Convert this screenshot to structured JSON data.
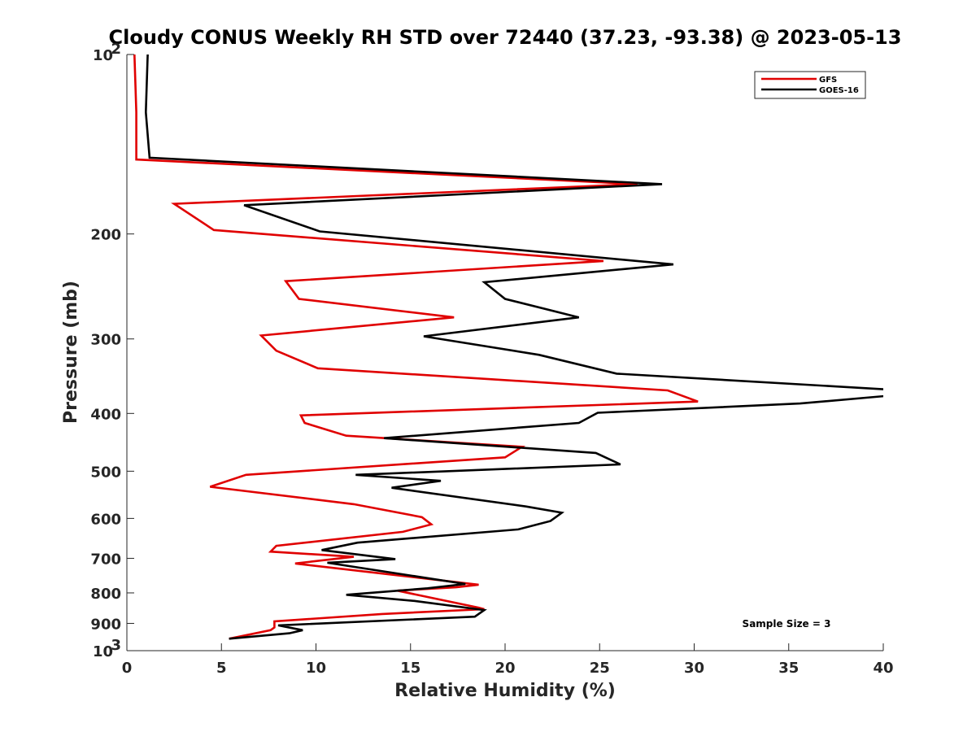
{
  "chart_data": {
    "type": "line",
    "title": "Cloudy CONUS Weekly RH STD over 72440 (37.23, -93.38) @ 2023-05-13",
    "xlabel": "Relative Humidity (%)",
    "ylabel": "Pressure (mb)",
    "xlim": [
      0,
      40
    ],
    "ylim": [
      1000,
      100
    ],
    "y_scale": "log",
    "y_reversed": true,
    "x_ticks": [
      0,
      5,
      10,
      15,
      20,
      25,
      30,
      35,
      40
    ],
    "y_ticks": [
      {
        "value": 100,
        "label": "10",
        "sup": "2"
      },
      {
        "value": 200,
        "label": "200",
        "sup": ""
      },
      {
        "value": 300,
        "label": "300",
        "sup": ""
      },
      {
        "value": 400,
        "label": "400",
        "sup": ""
      },
      {
        "value": 500,
        "label": "500",
        "sup": ""
      },
      {
        "value": 600,
        "label": "600",
        "sup": ""
      },
      {
        "value": 700,
        "label": "700",
        "sup": ""
      },
      {
        "value": 800,
        "label": "800",
        "sup": ""
      },
      {
        "value": 900,
        "label": "900",
        "sup": ""
      },
      {
        "value": 1000,
        "label": "10",
        "sup": "3"
      }
    ],
    "grid": false,
    "legend_position": "top-right",
    "annotation": "Sample Size = 3",
    "series": [
      {
        "name": "GFS",
        "color": "#e00000",
        "points": [
          [
            0.4,
            100
          ],
          [
            0.5,
            125
          ],
          [
            0.5,
            150
          ],
          [
            27.0,
            165
          ],
          [
            2.5,
            178
          ],
          [
            4.6,
            197
          ],
          [
            25.2,
            222
          ],
          [
            8.4,
            240
          ],
          [
            9.1,
            257
          ],
          [
            17.3,
            276
          ],
          [
            7.1,
            296
          ],
          [
            7.9,
            314
          ],
          [
            10.1,
            336
          ],
          [
            28.6,
            366
          ],
          [
            30.2,
            382
          ],
          [
            9.2,
            403
          ],
          [
            9.4,
            415
          ],
          [
            11.6,
            436
          ],
          [
            20.9,
            455
          ],
          [
            20.0,
            474
          ],
          [
            6.3,
            507
          ],
          [
            4.4,
            531
          ],
          [
            12.0,
            568
          ],
          [
            15.6,
            597
          ],
          [
            16.1,
            614
          ],
          [
            14.6,
            632
          ],
          [
            7.9,
            667
          ],
          [
            7.6,
            682
          ],
          [
            12.0,
            696
          ],
          [
            8.9,
            714
          ],
          [
            18.6,
            775
          ],
          [
            17.4,
            783
          ],
          [
            14.3,
            793
          ],
          [
            18.6,
            847
          ],
          [
            18.9,
            852
          ],
          [
            13.5,
            868
          ],
          [
            7.8,
            893
          ],
          [
            7.8,
            914
          ],
          [
            7.6,
            924
          ],
          [
            5.4,
            955
          ]
        ]
      },
      {
        "name": "GOES-16",
        "color": "#000000",
        "points": [
          [
            1.1,
            100
          ],
          [
            1.0,
            125
          ],
          [
            1.2,
            149
          ],
          [
            28.3,
            165
          ],
          [
            6.2,
            179
          ],
          [
            10.2,
            198
          ],
          [
            28.9,
            225
          ],
          [
            18.9,
            241
          ],
          [
            20.0,
            257
          ],
          [
            23.9,
            276
          ],
          [
            15.7,
            297
          ],
          [
            21.8,
            319
          ],
          [
            25.9,
            343
          ],
          [
            40.5,
            365
          ],
          [
            40.5,
            373
          ],
          [
            35.6,
            385
          ],
          [
            24.9,
            399
          ],
          [
            23.9,
            415
          ],
          [
            13.6,
            440
          ],
          [
            24.8,
            466
          ],
          [
            26.1,
            487
          ],
          [
            12.1,
            507
          ],
          [
            16.6,
            519
          ],
          [
            14.0,
            533
          ],
          [
            21.1,
            573
          ],
          [
            23.0,
            587
          ],
          [
            22.4,
            606
          ],
          [
            20.7,
            626
          ],
          [
            12.2,
            659
          ],
          [
            10.3,
            678
          ],
          [
            14.2,
            702
          ],
          [
            10.6,
            712
          ],
          [
            17.9,
            773
          ],
          [
            15.9,
            786
          ],
          [
            11.6,
            806
          ],
          [
            15.2,
            825
          ],
          [
            18.9,
            855
          ],
          [
            18.4,
            877
          ],
          [
            8.0,
            907
          ],
          [
            9.3,
            924
          ],
          [
            8.6,
            935
          ],
          [
            5.4,
            955
          ]
        ]
      }
    ]
  }
}
